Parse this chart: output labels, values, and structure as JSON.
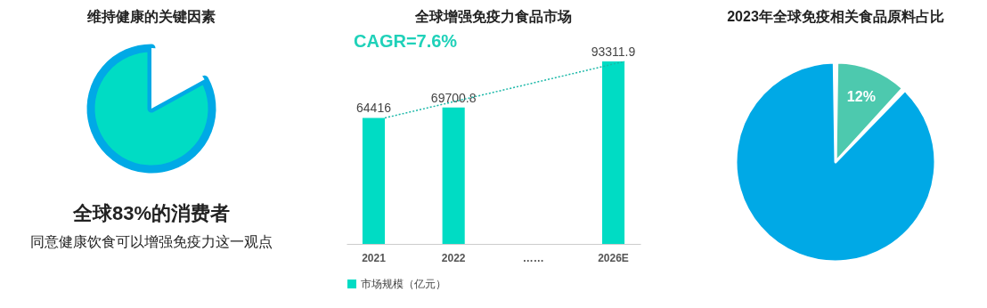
{
  "chart_data": [
    {
      "type": "pie",
      "title": "维持健康的关键因素",
      "categories": [
        null,
        null
      ],
      "values": [
        83,
        17
      ],
      "colors": [
        "#00dcc4",
        "#ffffff"
      ],
      "annotations": [
        "全球83%的消费者",
        "同意健康饮食可以增强免疫力这一观点"
      ]
    },
    {
      "type": "bar",
      "title": "全球增强免疫力食品市场",
      "categories": [
        "2021",
        "2022",
        "……",
        "2026E"
      ],
      "series": [
        {
          "name": "市场规模（亿元）",
          "color": "#00dcc4",
          "values": [
            64416,
            69700.8,
            null,
            93311.9
          ],
          "value_labels": [
            "64416",
            "69700.8",
            null,
            "93311.9"
          ]
        },
        {
          "type": "line",
          "color": "#1bb8a8",
          "line_style": "dotted",
          "marker": "none",
          "values": [
            64416,
            null,
            null,
            93311.9
          ]
        }
      ],
      "legend": "bottom",
      "annotations": [
        "CAGR=7.6%"
      ]
    },
    {
      "type": "pie",
      "title": "2023年全球免疫相关食品原料占比",
      "categories": [
        null,
        null
      ],
      "values": [
        12,
        88
      ],
      "colors": [
        "#4dc9ae",
        "#00a9e6"
      ],
      "value_labels": [
        "12%",
        null
      ]
    }
  ]
}
